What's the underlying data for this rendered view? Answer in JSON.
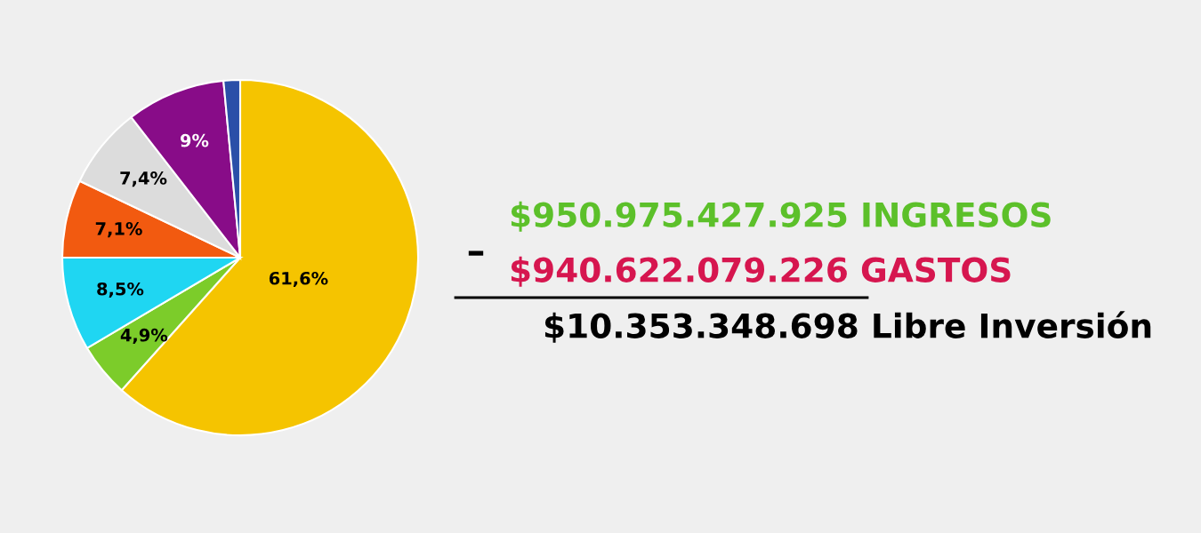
{
  "chart_data": {
    "type": "pie",
    "categories": [
      null,
      null,
      null,
      null,
      null,
      null,
      null
    ],
    "values": [
      61.6,
      4.9,
      8.5,
      7.1,
      7.4,
      9,
      1.5
    ],
    "colors": [
      "#f5c400",
      "#7ccc2a",
      "#1fd6f2",
      "#f25a10",
      "#dcdcdc",
      "#880c88",
      "#2a4fa8"
    ],
    "value_labels": [
      "61,6%",
      "4,9%",
      "8,5%",
      "7,1%",
      "7,4%",
      "9%",
      null
    ],
    "annotations": [
      "–",
      "$950.975.427.925 INGRESOS",
      "$940.622.079.226 GASTOS",
      "$10.353.348.698 Libre Inversión"
    ]
  }
}
